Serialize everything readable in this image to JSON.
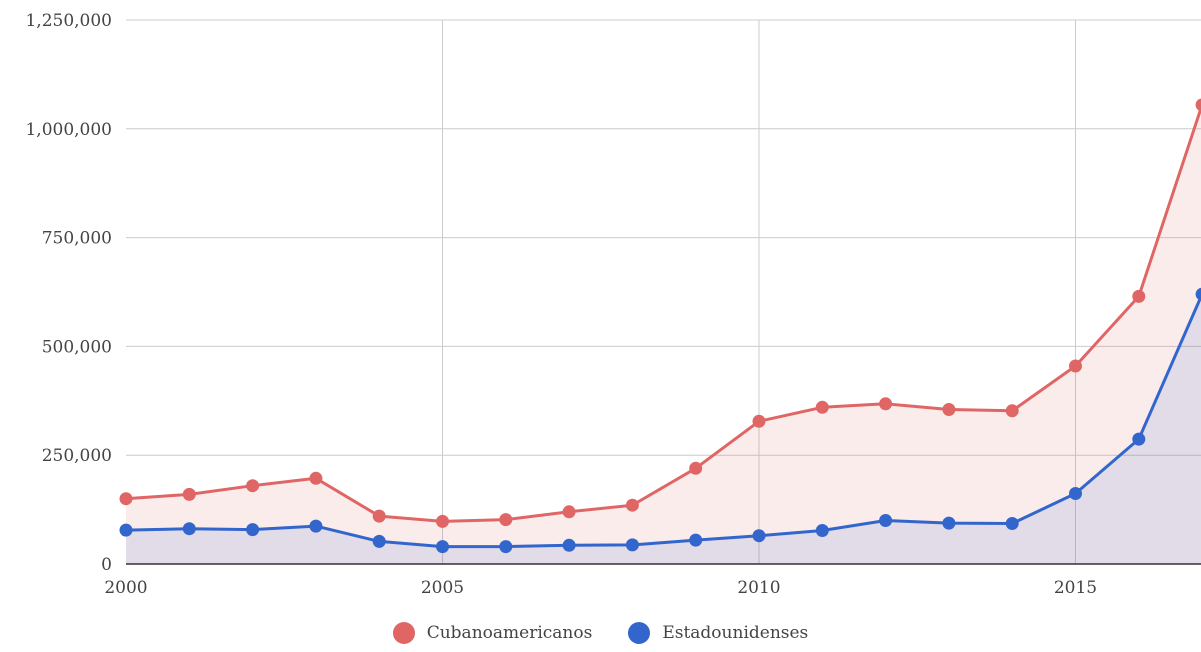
{
  "chart_data": {
    "type": "area",
    "title": "",
    "xlabel": "",
    "ylabel": "",
    "x": [
      2000,
      2001,
      2002,
      2003,
      2004,
      2005,
      2006,
      2007,
      2008,
      2009,
      2010,
      2011,
      2012,
      2013,
      2014,
      2015,
      2016,
      2017
    ],
    "xlim": [
      2000,
      2017
    ],
    "ylim": [
      0,
      1250000
    ],
    "x_ticks": [
      "2000",
      "2005",
      "2010",
      "2015"
    ],
    "y_ticks": [
      "0",
      "250,000",
      "500,000",
      "750,000",
      "1,000,000",
      "1,250,000"
    ],
    "grid": true,
    "legend_position": "bottom",
    "series": [
      {
        "name": "Cubanoamericanos",
        "color": "#e06666",
        "values": [
          150000,
          160000,
          180000,
          197000,
          110000,
          98000,
          102000,
          120000,
          135000,
          220000,
          328000,
          360000,
          368000,
          355000,
          352000,
          455000,
          615000,
          1055000
        ]
      },
      {
        "name": "Estadounidenses",
        "color": "#3366cc",
        "values": [
          78000,
          81000,
          79000,
          87000,
          52000,
          40000,
          40000,
          43000,
          44000,
          55000,
          65000,
          77000,
          100000,
          94000,
          93000,
          162000,
          287000,
          620000
        ]
      }
    ]
  }
}
